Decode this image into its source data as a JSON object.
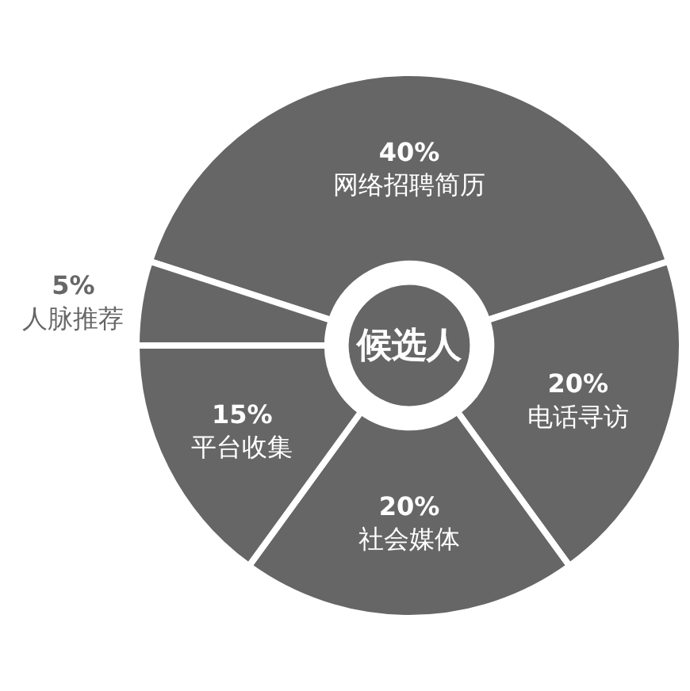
{
  "chart_data": {
    "type": "donut",
    "title": "候选人",
    "categories": [
      "网络招聘简历",
      "电话寻访",
      "社会媒体",
      "平台收集",
      "人脉推荐"
    ],
    "values": [
      40,
      20,
      20,
      15,
      5
    ],
    "value_labels": [
      "40%",
      "20%",
      "20%",
      "15%",
      "5%"
    ],
    "colors": [
      "#666666",
      "#666666",
      "#666666",
      "#666666",
      "#666666"
    ]
  }
}
